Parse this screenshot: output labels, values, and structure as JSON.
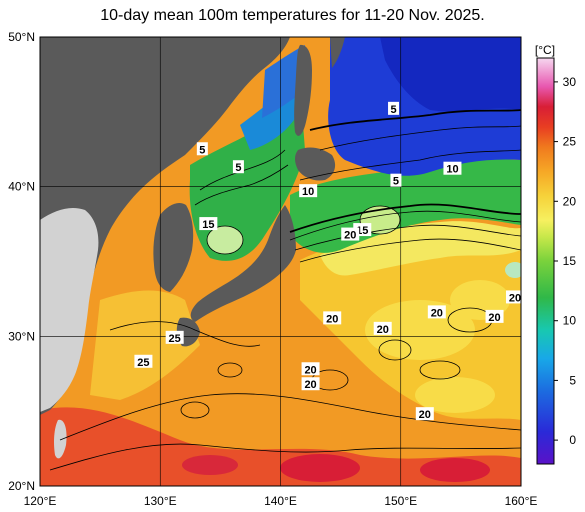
{
  "title": "10-day mean 100m temperatures for 11-20 Nov. 2025.",
  "map": {
    "lon_range": [
      120,
      160
    ],
    "lat_range": [
      20,
      50
    ],
    "lon_ticks": [
      {
        "value": 120,
        "label": "120°E"
      },
      {
        "value": 130,
        "label": "130°E"
      },
      {
        "value": 140,
        "label": "140°E"
      },
      {
        "value": 150,
        "label": "150°E"
      },
      {
        "value": 160,
        "label": "160°E"
      }
    ],
    "lat_ticks": [
      {
        "value": 50,
        "label": "50°N"
      },
      {
        "value": 40,
        "label": "40°N"
      },
      {
        "value": 30,
        "label": "30°N"
      },
      {
        "value": 20,
        "label": "20°N"
      }
    ],
    "colors": {
      "land": "#5a5a5a",
      "land_light": "#d2d2d2",
      "ocean_warm": "#f08a1e",
      "ocean_red": "#e8402a",
      "ocean_yellow": "#f6d23a",
      "ocean_green": "#2fb84a",
      "ocean_blue": "#1a3cd6"
    },
    "contour_labels": [
      {
        "text": "5",
        "lon": 133.5,
        "lat": 42.5
      },
      {
        "text": "5",
        "lon": 136.5,
        "lat": 41.3
      },
      {
        "text": "5",
        "lon": 149.4,
        "lat": 45.2
      },
      {
        "text": "5",
        "lon": 149.6,
        "lat": 40.4
      },
      {
        "text": "10",
        "lon": 142.3,
        "lat": 39.7
      },
      {
        "text": "10",
        "lon": 154.3,
        "lat": 41.2
      },
      {
        "text": "15",
        "lon": 134.0,
        "lat": 37.5
      },
      {
        "text": "15",
        "lon": 146.8,
        "lat": 37.1
      },
      {
        "text": "20",
        "lon": 145.8,
        "lat": 36.8
      },
      {
        "text": "20",
        "lon": 144.3,
        "lat": 31.2
      },
      {
        "text": "20",
        "lon": 148.5,
        "lat": 30.5
      },
      {
        "text": "20",
        "lon": 153.0,
        "lat": 31.6
      },
      {
        "text": "20",
        "lon": 157.8,
        "lat": 31.3
      },
      {
        "text": "20",
        "lon": 159.5,
        "lat": 32.6
      },
      {
        "text": "20",
        "lon": 142.5,
        "lat": 27.8
      },
      {
        "text": "20",
        "lon": 142.5,
        "lat": 26.8
      },
      {
        "text": "20",
        "lon": 152.0,
        "lat": 24.8
      },
      {
        "text": "25",
        "lon": 131.2,
        "lat": 29.9
      },
      {
        "text": "25",
        "lon": 128.6,
        "lat": 28.3
      }
    ]
  },
  "colorbar": {
    "unit": "[°C]",
    "range": [
      -2,
      32
    ],
    "ticks": [
      {
        "value": 30,
        "label": "30"
      },
      {
        "value": 25,
        "label": "25"
      },
      {
        "value": 20,
        "label": "20"
      },
      {
        "value": 15,
        "label": "15"
      },
      {
        "value": 10,
        "label": "10"
      },
      {
        "value": 5,
        "label": "5"
      },
      {
        "value": 0,
        "label": "0"
      }
    ]
  }
}
